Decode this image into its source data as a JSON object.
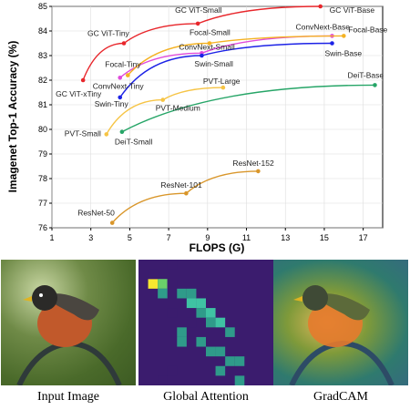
{
  "chart_data": {
    "type": "scatter",
    "xlabel": "FLOPS (G)",
    "ylabel": "Imagenet Top-1 Accuracy (%)",
    "xlim": [
      1,
      18
    ],
    "ylim": [
      76,
      85
    ],
    "xticks": [
      "1",
      "3",
      "5",
      "7",
      "9",
      "11",
      "13",
      "15",
      "17"
    ],
    "yticks": [
      "76",
      "77",
      "78",
      "79",
      "80",
      "81",
      "82",
      "83",
      "84",
      "85"
    ],
    "series": [
      {
        "name": "GC ViT",
        "color": "#e8262b",
        "points": [
          {
            "x": 2.6,
            "y": 82.0,
            "label": "GC ViT-xTiny"
          },
          {
            "x": 4.7,
            "y": 83.5,
            "label": "GC ViT-Tiny"
          },
          {
            "x": 8.5,
            "y": 84.3,
            "label": "GC ViT-Small"
          },
          {
            "x": 14.8,
            "y": 85.0,
            "label": "GC ViT-Base"
          }
        ]
      },
      {
        "name": "ConvNeXt",
        "color": "#e04adb",
        "points": [
          {
            "x": 4.5,
            "y": 82.1,
            "label": "ConvNext-Tiny"
          },
          {
            "x": 8.7,
            "y": 83.1,
            "label": "ConvNext-Small"
          },
          {
            "x": 15.4,
            "y": 83.8,
            "label": "ConvNext-Base"
          }
        ]
      },
      {
        "name": "Focal",
        "color": "#f4b223",
        "points": [
          {
            "x": 4.9,
            "y": 82.2,
            "label": "Focal-Tiny"
          },
          {
            "x": 9.1,
            "y": 83.5,
            "label": "Focal-Small"
          },
          {
            "x": 16.0,
            "y": 83.8,
            "label": "Focal-Base"
          }
        ]
      },
      {
        "name": "Swin",
        "color": "#1c22e6",
        "points": [
          {
            "x": 4.5,
            "y": 81.3,
            "label": "Swin-Tiny"
          },
          {
            "x": 8.7,
            "y": 83.0,
            "label": "Swin-Small"
          },
          {
            "x": 15.4,
            "y": 83.5,
            "label": "Swin-Base"
          }
        ]
      },
      {
        "name": "PVT",
        "color": "#f6c445",
        "points": [
          {
            "x": 3.8,
            "y": 79.8,
            "label": "PVT-Small"
          },
          {
            "x": 6.7,
            "y": 81.2,
            "label": "PVT-Medium"
          },
          {
            "x": 9.8,
            "y": 81.7,
            "label": "PVT-Large"
          }
        ]
      },
      {
        "name": "DeiT",
        "color": "#26a567",
        "points": [
          {
            "x": 4.6,
            "y": 79.9,
            "label": "DeiT-Small"
          },
          {
            "x": 17.6,
            "y": 81.8,
            "label": "DeiT-Base"
          }
        ]
      },
      {
        "name": "ResNet",
        "color": "#d9962a",
        "points": [
          {
            "x": 4.1,
            "y": 76.2,
            "label": "ResNet-50"
          },
          {
            "x": 7.9,
            "y": 77.4,
            "label": "ResNet-101"
          },
          {
            "x": 11.6,
            "y": 78.3,
            "label": "ResNet-152"
          }
        ]
      }
    ]
  },
  "panels": {
    "input_caption": "Input Image",
    "attention_caption": "Global Attention",
    "gradcam_caption": "GradCAM",
    "attention_colors": [
      "#3b1c6e",
      "#2f9b8a",
      "#3fc3a3",
      "#f7e830",
      "#6ad06a"
    ],
    "attention_cells": [
      {
        "r": 2,
        "c": 1,
        "v": 3
      },
      {
        "r": 2,
        "c": 2,
        "v": 4
      },
      {
        "r": 2,
        "c": 3,
        "v": 0
      },
      {
        "r": 3,
        "c": 2,
        "v": 1
      },
      {
        "r": 3,
        "c": 4,
        "v": 1
      },
      {
        "r": 3,
        "c": 5,
        "v": 1
      },
      {
        "r": 4,
        "c": 5,
        "v": 2
      },
      {
        "r": 4,
        "c": 6,
        "v": 2
      },
      {
        "r": 5,
        "c": 6,
        "v": 1
      },
      {
        "r": 5,
        "c": 7,
        "v": 2
      },
      {
        "r": 6,
        "c": 7,
        "v": 1
      },
      {
        "r": 6,
        "c": 8,
        "v": 2
      },
      {
        "r": 7,
        "c": 9,
        "v": 1
      },
      {
        "r": 7,
        "c": 4,
        "v": 1
      },
      {
        "r": 8,
        "c": 4,
        "v": 1
      },
      {
        "r": 8,
        "c": 6,
        "v": 1
      },
      {
        "r": 9,
        "c": 7,
        "v": 1
      },
      {
        "r": 9,
        "c": 8,
        "v": 1
      },
      {
        "r": 10,
        "c": 9,
        "v": 1
      },
      {
        "r": 10,
        "c": 10,
        "v": 1
      },
      {
        "r": 11,
        "c": 8,
        "v": 1
      },
      {
        "r": 11,
        "c": 3,
        "v": 0
      },
      {
        "r": 12,
        "c": 2,
        "v": 0
      },
      {
        "r": 12,
        "c": 10,
        "v": 1
      },
      {
        "r": 1,
        "c": 1,
        "v": 0
      },
      {
        "r": 0,
        "c": 3,
        "v": 0
      },
      {
        "r": 5,
        "c": 3,
        "v": 0
      },
      {
        "r": 6,
        "c": 5,
        "v": 0
      }
    ]
  }
}
